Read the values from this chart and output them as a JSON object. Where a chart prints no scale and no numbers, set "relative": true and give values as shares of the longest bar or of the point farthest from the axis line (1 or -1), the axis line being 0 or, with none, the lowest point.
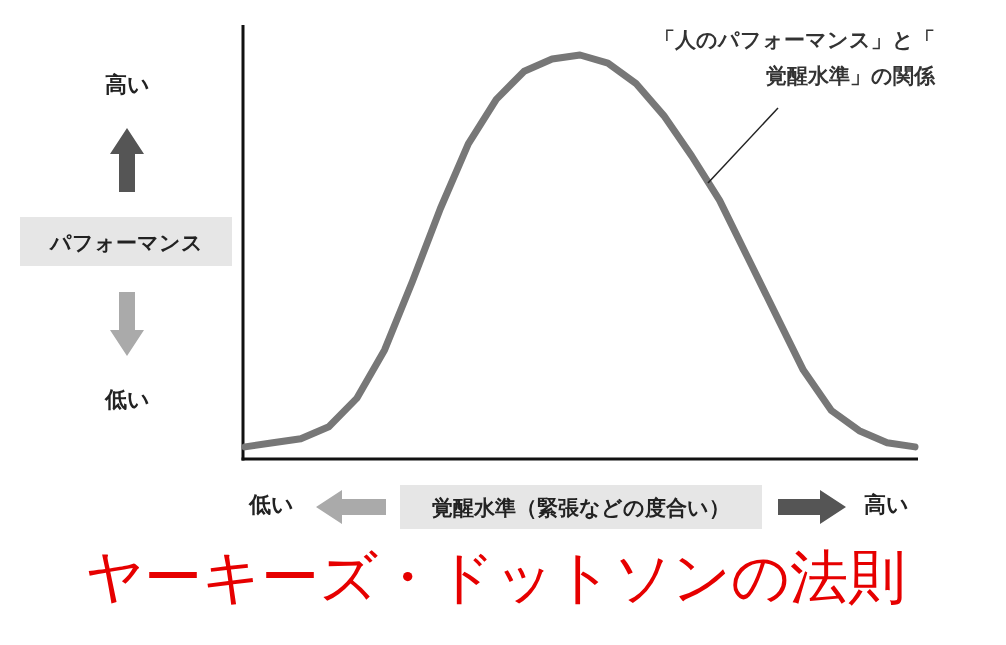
{
  "chart_data": {
    "type": "line",
    "title": "ヤーキーズ・ドットソンの法則",
    "xlabel": "覚醒水準（緊張などの度合い）",
    "ylabel": "パフォーマンス",
    "relative": true,
    "categories": [
      null,
      null,
      null,
      null,
      null,
      null,
      null,
      null,
      null,
      null,
      null,
      null,
      null,
      null,
      null,
      null,
      null,
      null,
      null,
      null,
      null,
      null,
      null,
      null,
      null
    ],
    "series": [
      {
        "name": "「人のパフォーマンス」と「覚醒水準」の関係",
        "color": "#777777",
        "values": [
          0.03,
          0.04,
          0.05,
          0.08,
          0.15,
          0.27,
          0.44,
          0.62,
          0.78,
          0.89,
          0.96,
          0.99,
          1.0,
          0.98,
          0.93,
          0.85,
          0.75,
          0.64,
          0.5,
          0.36,
          0.22,
          0.12,
          0.07,
          0.04,
          0.03
        ]
      }
    ],
    "annotations": [
      "高い",
      "低い",
      "低い",
      "高い"
    ]
  }
}
